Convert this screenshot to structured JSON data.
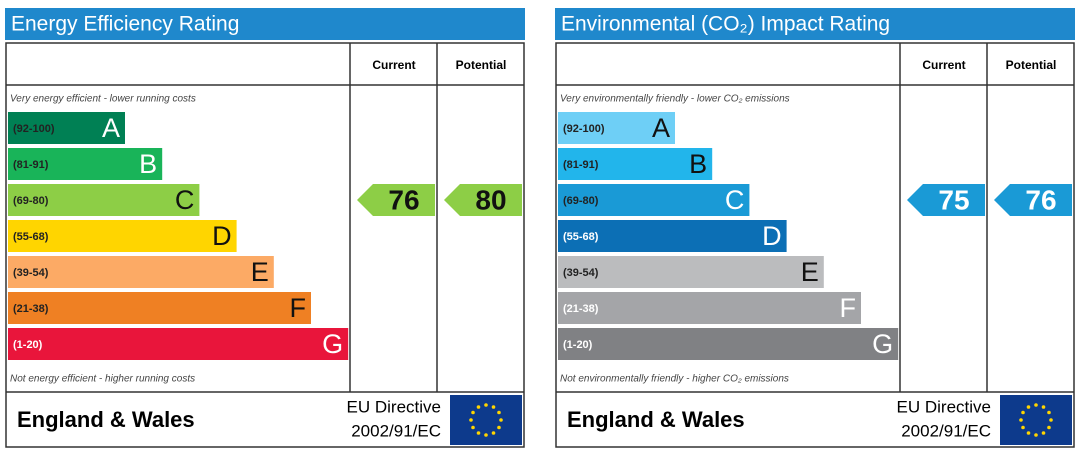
{
  "chart_data": [
    {
      "type": "rating",
      "title": "Energy Efficiency Rating",
      "columns": [
        "Current",
        "Potential"
      ],
      "top_note": "Very energy efficient - lower running costs",
      "bottom_note": "Not energy efficient - higher running costs",
      "bands": [
        {
          "label": "(92-100)",
          "letter": "A",
          "range": [
            92,
            100
          ],
          "color": "#008054",
          "text_color": "#ffffff"
        },
        {
          "label": "(81-91)",
          "letter": "B",
          "range": [
            81,
            91
          ],
          "color": "#19b459",
          "text_color": "#ffffff"
        },
        {
          "label": "(69-80)",
          "letter": "C",
          "range": [
            69,
            80
          ],
          "color": "#8dce46",
          "text_color": "#111111"
        },
        {
          "label": "(55-68)",
          "letter": "D",
          "range": [
            55,
            68
          ],
          "color": "#ffd500",
          "text_color": "#111111"
        },
        {
          "label": "(39-54)",
          "letter": "E",
          "range": [
            39,
            54
          ],
          "color": "#fcaa65",
          "text_color": "#111111"
        },
        {
          "label": "(21-38)",
          "letter": "F",
          "range": [
            21,
            38
          ],
          "color": "#ef8023",
          "text_color": "#111111"
        },
        {
          "label": "(1-20)",
          "letter": "G",
          "range": [
            1,
            20
          ],
          "color": "#e9153b",
          "text_color": "#ffffff"
        }
      ],
      "current": 76,
      "potential": 80,
      "footer": "England & Wales",
      "directive": "EU Directive",
      "directive_code": "2002/91/EC"
    },
    {
      "type": "rating",
      "title": "Environmental (CO₂) Impact Rating",
      "columns": [
        "Current",
        "Potential"
      ],
      "top_note": "Very environmentally friendly - lower CO₂ emissions",
      "bottom_note": "Not environmentally friendly - higher CO₂ emissions",
      "bands": [
        {
          "label": "(92-100)",
          "letter": "A",
          "range": [
            92,
            100
          ],
          "color": "#6ecff6",
          "text_color": "#111111"
        },
        {
          "label": "(81-91)",
          "letter": "B",
          "range": [
            81,
            91
          ],
          "color": "#22b5eb",
          "text_color": "#111111"
        },
        {
          "label": "(69-80)",
          "letter": "C",
          "range": [
            69,
            80
          ],
          "color": "#1a9ad6",
          "text_color": "#ffffff"
        },
        {
          "label": "(55-68)",
          "letter": "D",
          "range": [
            55,
            68
          ],
          "color": "#0c6fb5",
          "text_color": "#ffffff"
        },
        {
          "label": "(39-54)",
          "letter": "E",
          "range": [
            39,
            54
          ],
          "color": "#bbbcbe",
          "text_color": "#111111"
        },
        {
          "label": "(21-38)",
          "letter": "F",
          "range": [
            21,
            38
          ],
          "color": "#a4a5a8",
          "text_color": "#ffffff"
        },
        {
          "label": "(1-20)",
          "letter": "G",
          "range": [
            1,
            20
          ],
          "color": "#808184",
          "text_color": "#ffffff"
        }
      ],
      "current": 75,
      "potential": 76,
      "footer": "England & Wales",
      "directive": "EU Directive",
      "directive_code": "2002/91/EC"
    }
  ]
}
